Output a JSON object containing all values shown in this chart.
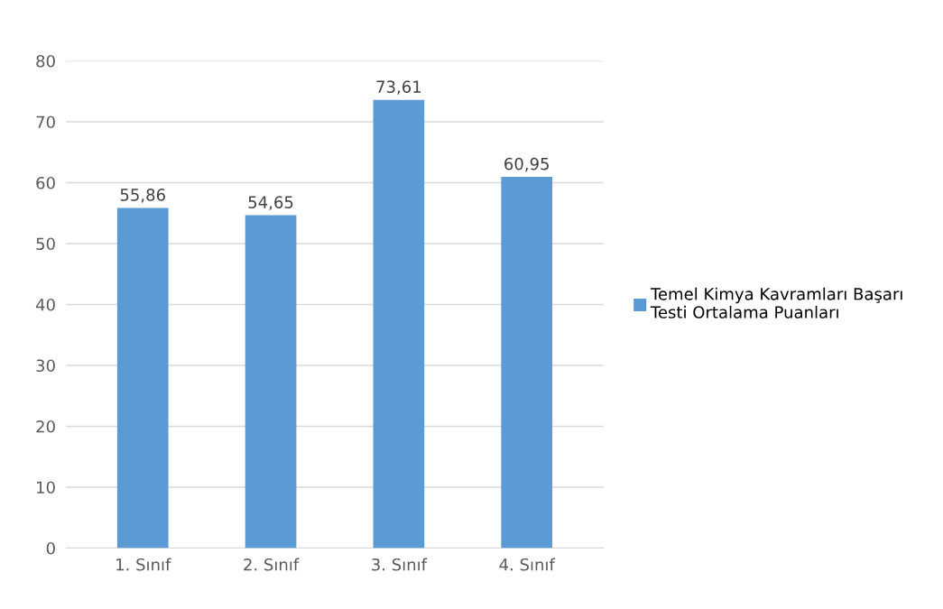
{
  "chart_data": {
    "type": "bar",
    "categories": [
      "1. Sınıf",
      "2. Sınıf",
      "3. Sınıf",
      "4. Sınıf"
    ],
    "series": [
      {
        "name": "Temel Kimya Kavramları Başarı Testi Ortalama Puanları",
        "color": "#5b9bd5",
        "values": [
          55.86,
          54.65,
          73.61,
          60.95
        ],
        "value_labels": [
          "55,86",
          "54,65",
          "73,61",
          "60,95"
        ]
      }
    ],
    "ylim": [
      0,
      80
    ],
    "yticks": [
      0,
      10,
      20,
      30,
      40,
      50,
      60,
      70,
      80
    ],
    "grid": "y",
    "legend": "right"
  }
}
